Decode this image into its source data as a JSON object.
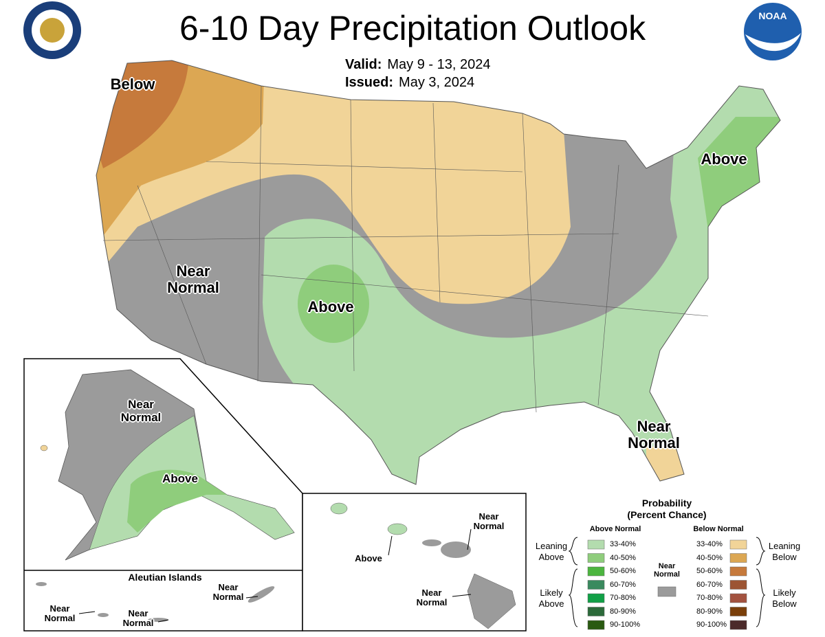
{
  "header": {
    "title": "6-10 Day Precipitation Outlook",
    "valid_label": "Valid:",
    "valid": "May 9 - 13, 2024",
    "issued_label": "Issued:",
    "issued": "May 3, 2024",
    "noaa_logo": "NOAA"
  },
  "conus_labels": [
    "Below",
    "Near Normal",
    "Above",
    "Above",
    "Near Normal"
  ],
  "alaska_labels": [
    "Near Normal",
    "Above"
  ],
  "aleutian": {
    "title": "Aleutian Islands",
    "labels": [
      "Near Normal",
      "Near Normal",
      "Near Normal"
    ]
  },
  "hawaii_labels": [
    "Near Normal",
    "Above",
    "Near Normal"
  ],
  "legend": {
    "title": "Probability",
    "subtitle": "(Percent Chance)",
    "above_header": "Above Normal",
    "below_header": "Below Normal",
    "near_header": "Near Normal",
    "near_color": "#9b9b9b",
    "above": [
      {
        "label": "33-40%",
        "color": "#b3dcae"
      },
      {
        "label": "40-50%",
        "color": "#8fcd7c"
      },
      {
        "label": "50-60%",
        "color": "#4cb53f"
      },
      {
        "label": "60-70%",
        "color": "#3a8a5e"
      },
      {
        "label": "70-80%",
        "color": "#11a046"
      },
      {
        "label": "80-90%",
        "color": "#2c6a3a"
      },
      {
        "label": "90-100%",
        "color": "#2a5a12"
      }
    ],
    "below": [
      {
        "label": "33-40%",
        "color": "#f1d498"
      },
      {
        "label": "40-50%",
        "color": "#dca753"
      },
      {
        "label": "50-60%",
        "color": "#c67a3c"
      },
      {
        "label": "60-70%",
        "color": "#9c5433"
      },
      {
        "label": "70-80%",
        "color": "#a3523f"
      },
      {
        "label": "80-90%",
        "color": "#7a3f0a"
      },
      {
        "label": "90-100%",
        "color": "#4b2a2a"
      }
    ],
    "groups": [
      "Leaning Above",
      "Likely Above",
      "Leaning Below",
      "Likely Below"
    ]
  }
}
